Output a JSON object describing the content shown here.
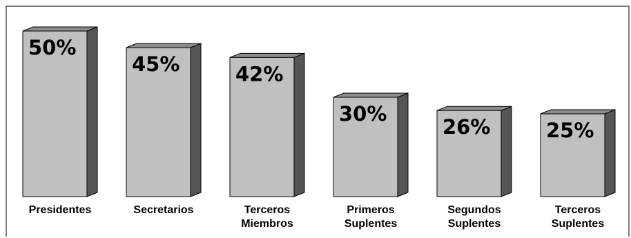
{
  "chart_data": {
    "type": "bar",
    "categories": [
      [
        "Presidentes"
      ],
      [
        "Secretarios"
      ],
      [
        "Terceros",
        "Miembros"
      ],
      [
        "Primeros",
        "Suplentes"
      ],
      [
        "Segundos",
        "Suplentes"
      ],
      [
        "Terceros",
        "Suplentes"
      ]
    ],
    "values": [
      50,
      45,
      42,
      30,
      26,
      25
    ],
    "data_labels": [
      "50%",
      "45%",
      "42%",
      "30%",
      "26%",
      "25%"
    ],
    "ylim": [
      0,
      52.5
    ],
    "style": "3d",
    "grid": false,
    "legend": "none",
    "colors": {
      "bar_front": "#c0c0c0",
      "bar_side": "#555555",
      "bar_top": "#8c8c8c",
      "outline": "#000000",
      "frame": "#000000"
    }
  }
}
